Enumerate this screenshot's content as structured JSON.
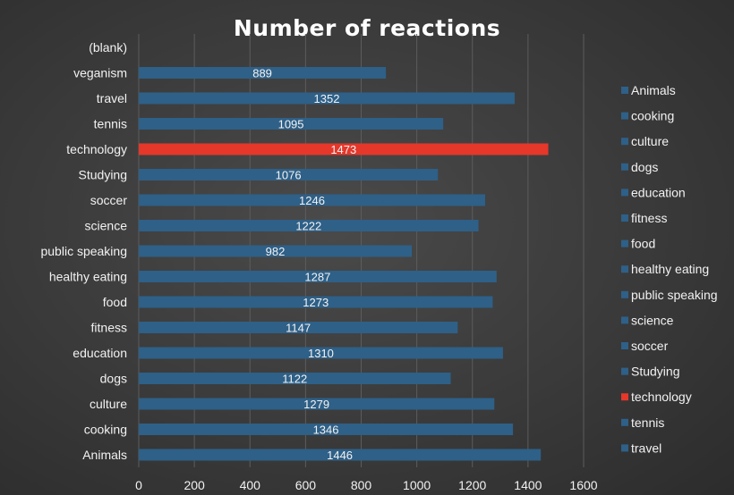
{
  "chart_data": {
    "type": "bar",
    "orientation": "horizontal",
    "title": "Number of reactions",
    "categories": [
      "Animals",
      "cooking",
      "culture",
      "dogs",
      "education",
      "fitness",
      "food",
      "healthy eating",
      "public speaking",
      "science",
      "soccer",
      "Studying",
      "technology",
      "tennis",
      "travel",
      "veganism",
      "(blank)"
    ],
    "values": [
      1446,
      1346,
      1279,
      1122,
      1310,
      1147,
      1273,
      1287,
      982,
      1222,
      1246,
      1076,
      1473,
      1095,
      1352,
      889,
      null
    ],
    "xlim": [
      0,
      1600
    ],
    "xticks": [
      0,
      200,
      400,
      600,
      800,
      1000,
      1200,
      1400,
      1600
    ],
    "grid": true,
    "data_labels": true,
    "legend": {
      "position": "right",
      "entries": [
        "Animals",
        "cooking",
        "culture",
        "dogs",
        "education",
        "fitness",
        "food",
        "healthy eating",
        "public speaking",
        "science",
        "soccer",
        "Studying",
        "technology",
        "tennis",
        "travel"
      ]
    },
    "highlight_category": "technology",
    "colors": {
      "bar": "#2e6088",
      "bar_highlight": "#e5372a",
      "background": "#3d3d3d",
      "text": "#f2f2f2"
    }
  }
}
